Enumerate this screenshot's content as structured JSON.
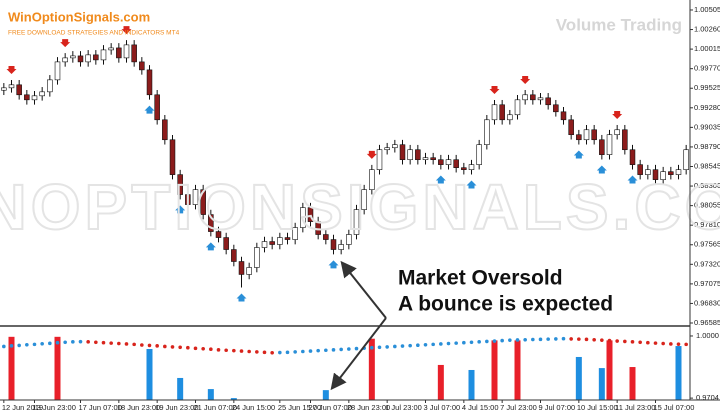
{
  "chart_data": {
    "type": "candlestick",
    "brand": "WinOptionSignals.com",
    "brand_subtitle": "FREE DOWNLOAD STRATEGIES AND INDICATORS MT4",
    "title": "Volume Trading",
    "watermark": "WINOPTIONSIGNALS.COM",
    "annotation": [
      "Market Oversold",
      "A bounce is expected"
    ],
    "up_color": "#ffffff",
    "down_color": "#8b1c1c",
    "categories": [
      "12 Jun 2019",
      null,
      null,
      null,
      "13 Jun 23:00",
      null,
      null,
      null,
      null,
      null,
      "17 Jun 07:00",
      null,
      null,
      null,
      null,
      "18 Jun 23:00",
      null,
      null,
      null,
      null,
      "19 Jun 23:00",
      null,
      null,
      null,
      null,
      "21 Jun 07:00",
      null,
      null,
      null,
      null,
      "24 Jun 15:00",
      null,
      null,
      null,
      null,
      null,
      "25 Jun 15:00",
      null,
      null,
      null,
      "27 Jun 07:00",
      null,
      null,
      null,
      null,
      "28 Jun 23:00",
      null,
      null,
      null,
      null,
      "1 Jul 23:00",
      null,
      null,
      null,
      null,
      "3 Jul 07:00",
      null,
      null,
      null,
      null,
      "4 Jul 15:00",
      null,
      null,
      null,
      null,
      "7 Jul 23:00",
      null,
      null,
      null,
      null,
      "9 Jul 07:00",
      null,
      null,
      null,
      null,
      "10 Jul 15:00",
      null,
      null,
      null,
      null,
      "11 Jul 23:00",
      null,
      null,
      null,
      null,
      "15 Jul 07:00",
      null,
      null,
      null,
      null
    ],
    "open": [
      0.995,
      0.9953,
      0.99568,
      0.99443,
      0.9938,
      0.9943,
      0.9948,
      0.9963,
      0.99855,
      0.99905,
      0.9993,
      0.99855,
      0.99943,
      0.9988,
      1.00005,
      1.0003,
      0.99905,
      1.00068,
      0.99855,
      0.99755,
      0.99443,
      0.9913,
      0.9888,
      0.98443,
      0.98193,
      0.98068,
      0.98255,
      0.97943,
      0.9773,
      0.97655,
      0.97505,
      0.97355,
      0.97193,
      0.9728,
      0.9753,
      0.97605,
      0.97568,
      0.97655,
      0.9763,
      0.9778,
      0.9803,
      0.97855,
      0.97693,
      0.9763,
      0.97505,
      0.97568,
      0.97693,
      0.98005,
      0.98255,
      0.98505,
      0.98755,
      0.9878,
      0.98818,
      0.9863,
      0.98755,
      0.9863,
      0.98655,
      0.9863,
      0.98568,
      0.9863,
      0.9853,
      0.98505,
      0.98568,
      0.98818,
      0.9913,
      0.99318,
      0.9913,
      0.99193,
      0.9938,
      0.99443,
      0.9938,
      0.99405,
      0.99318,
      0.9923,
      0.9913,
      0.98943,
      0.9888,
      0.99005,
      0.9888,
      0.98693,
      0.98943,
      0.99005,
      0.98755,
      0.98568,
      0.98443,
      0.98505,
      0.9838,
      0.9848,
      0.98443,
      0.98505
    ],
    "high": [
      0.9959,
      0.99628,
      0.99628,
      0.99503,
      0.9949,
      0.9954,
      0.9969,
      0.99915,
      0.99965,
      0.9999,
      0.9999,
      1.00003,
      1.00003,
      1.00065,
      1.0009,
      1.0009,
      1.00128,
      1.00128,
      0.99915,
      0.99815,
      0.99503,
      0.9919,
      0.9894,
      0.98503,
      0.98253,
      0.98315,
      0.98315,
      0.98003,
      0.9779,
      0.97715,
      0.97565,
      0.97415,
      0.9734,
      0.9759,
      0.97665,
      0.97665,
      0.97715,
      0.97715,
      0.9784,
      0.9809,
      0.9809,
      0.97915,
      0.97753,
      0.9769,
      0.97628,
      0.97753,
      0.98065,
      0.98315,
      0.98565,
      0.98815,
      0.9884,
      0.98878,
      0.98878,
      0.98815,
      0.98815,
      0.98715,
      0.98715,
      0.9869,
      0.9869,
      0.9869,
      0.9859,
      0.98628,
      0.98878,
      0.9919,
      0.99378,
      0.99378,
      0.99253,
      0.9944,
      0.99503,
      0.99503,
      0.99465,
      0.99465,
      0.99378,
      0.9929,
      0.9919,
      0.99003,
      0.99065,
      0.99065,
      0.9894,
      0.99003,
      0.99065,
      0.99065,
      0.98815,
      0.98628,
      0.98565,
      0.98565,
      0.9854,
      0.9854,
      0.98565,
      0.98815
    ],
    "low": [
      0.9944,
      0.9947,
      0.99383,
      0.9932,
      0.9932,
      0.9937,
      0.9942,
      0.9957,
      0.99795,
      0.99845,
      0.99795,
      0.99795,
      0.9982,
      0.9982,
      0.99945,
      0.99845,
      0.99845,
      0.99795,
      0.99695,
      0.99383,
      0.9907,
      0.9882,
      0.98383,
      0.98133,
      0.98008,
      0.98008,
      0.97883,
      0.9767,
      0.97595,
      0.97445,
      0.97295,
      0.9703,
      0.97133,
      0.9722,
      0.9747,
      0.97508,
      0.97508,
      0.9757,
      0.9757,
      0.9772,
      0.97795,
      0.97633,
      0.9757,
      0.97445,
      0.97445,
      0.97508,
      0.97633,
      0.97945,
      0.98195,
      0.98445,
      0.98695,
      0.9872,
      0.9857,
      0.9857,
      0.9857,
      0.9857,
      0.9857,
      0.98508,
      0.98508,
      0.9847,
      0.98445,
      0.98445,
      0.98508,
      0.98758,
      0.9907,
      0.9907,
      0.9907,
      0.99133,
      0.9932,
      0.9932,
      0.9932,
      0.99258,
      0.9917,
      0.9907,
      0.98883,
      0.9882,
      0.9882,
      0.9882,
      0.98633,
      0.98633,
      0.98883,
      0.98695,
      0.98508,
      0.98383,
      0.98383,
      0.9832,
      0.9832,
      0.98383,
      0.98383,
      0.98445
    ],
    "close": [
      0.9953,
      0.99568,
      0.99443,
      0.9938,
      0.9943,
      0.9948,
      0.9963,
      0.99855,
      0.99905,
      0.9993,
      0.99855,
      0.99943,
      0.9988,
      1.00005,
      1.0003,
      0.99905,
      1.00068,
      0.99855,
      0.99755,
      0.99443,
      0.9913,
      0.9888,
      0.98443,
      0.98193,
      0.98068,
      0.98255,
      0.97943,
      0.9773,
      0.97655,
      0.97505,
      0.97355,
      0.97193,
      0.9728,
      0.9753,
      0.97605,
      0.97568,
      0.97655,
      0.9763,
      0.9778,
      0.9803,
      0.97855,
      0.97693,
      0.9763,
      0.97505,
      0.97568,
      0.97693,
      0.98005,
      0.98255,
      0.98505,
      0.98755,
      0.9878,
      0.98818,
      0.9863,
      0.98755,
      0.9863,
      0.98655,
      0.9863,
      0.98568,
      0.9863,
      0.9853,
      0.98505,
      0.98568,
      0.98818,
      0.9913,
      0.99318,
      0.9913,
      0.99193,
      0.9938,
      0.99443,
      0.9938,
      0.99405,
      0.99318,
      0.9923,
      0.9913,
      0.98943,
      0.9888,
      0.99005,
      0.9888,
      0.98693,
      0.98943,
      0.99005,
      0.98755,
      0.98568,
      0.98443,
      0.98505,
      0.9838,
      0.9848,
      0.98443,
      0.98505,
      0.98755
    ],
    "ylim": [
      0.9656,
      1.0063
    ],
    "yticks": [
      1.00505,
      {
        "value": 1.0026,
        "label": "1.00260"
      },
      1.00015,
      {
        "value": 0.9977,
        "label": "0.99770"
      },
      0.99525,
      {
        "value": 0.9928,
        "label": "0.99280"
      },
      0.99035,
      {
        "value": 0.9879,
        "label": "0.98790"
      },
      0.98545,
      {
        "value": 0.983,
        "label": "0.98300"
      },
      0.98055,
      {
        "value": 0.9781,
        "label": "0.97810"
      },
      0.97565,
      {
        "value": 0.9732,
        "label": "0.97320"
      },
      0.97075,
      {
        "value": 0.9683,
        "label": "0.96830"
      },
      0.96585
    ],
    "sell_signals": [
      1,
      8,
      16,
      48,
      64,
      68,
      80
    ],
    "buy_signals": [
      19,
      23,
      27,
      31,
      43,
      57,
      61,
      75,
      78,
      82
    ],
    "signal_sell_color": "#d8241c",
    "signal_buy_color": "#2a8fd8",
    "oscillator": {
      "ylim": [
        0.9695,
        1.0038
      ],
      "yticks": [
        {
          "value": 1.0,
          "label": "1.0000"
        },
        0.9704
      ],
      "rising_color": "#2a8fd8",
      "falling_color": "#d8241c",
      "values": [
        0.995,
        0.9953,
        0.9955,
        0.9958,
        0.996,
        0.9963,
        0.9965,
        0.9968,
        0.997,
        0.9972,
        0.9973,
        0.9972,
        0.997,
        0.9968,
        0.9966,
        0.9964,
        0.9962,
        0.996,
        0.9957,
        0.9955,
        0.9953,
        0.995,
        0.9948,
        0.9946,
        0.9944,
        0.9941,
        0.9939,
        0.9937,
        0.9934,
        0.9932,
        0.993,
        0.9928,
        0.9926,
        0.9924,
        0.9922,
        0.992,
        0.9921,
        0.9922,
        0.9924,
        0.9926,
        0.9928,
        0.993,
        0.9932,
        0.9934,
        0.9936,
        0.9938,
        0.994,
        0.9942,
        0.9944,
        0.9946,
        0.9948,
        0.995,
        0.9952,
        0.9954,
        0.9956,
        0.9958,
        0.996,
        0.9962,
        0.9964,
        0.9966,
        0.9968,
        0.997,
        0.9972,
        0.9974,
        0.9976,
        0.9978,
        0.998,
        0.9981,
        0.9982,
        0.9983,
        0.9984,
        0.9985,
        0.9986,
        0.9987,
        0.9986,
        0.9985,
        0.9984,
        0.9982,
        0.998,
        0.9978,
        0.9976,
        0.9974,
        0.9972,
        0.997,
        0.9968,
        0.9966,
        0.9964,
        0.9962,
        0.9961,
        0.996
      ],
      "sell_bars": {
        "color": "#e8202a",
        "index": [
          1,
          7,
          48,
          57,
          64,
          67,
          79,
          82
        ],
        "values": [
          0.9996,
          0.9996,
          0.9987,
          0.9862,
          0.9979,
          0.9979,
          0.9979,
          0.9852
        ]
      },
      "buy_bars": {
        "color": "#1e8ee0",
        "index": [
          19,
          23,
          27,
          30,
          42,
          61,
          75,
          78,
          88
        ],
        "values": [
          0.9938,
          0.98,
          0.9747,
          0.9704,
          0.9742,
          0.9838,
          0.99,
          0.9847,
          0.9952
        ]
      }
    }
  }
}
